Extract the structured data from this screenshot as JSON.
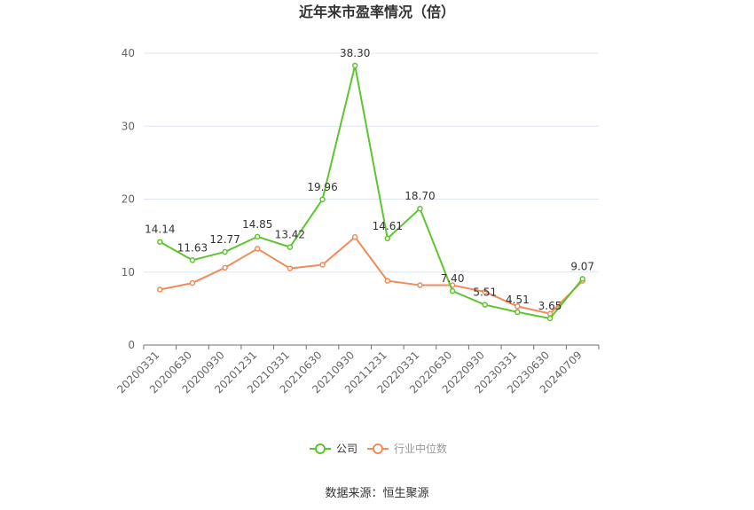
{
  "chart_data": {
    "type": "line",
    "title": "近年来市盈率情况（倍）",
    "categories": [
      "20200331",
      "20200630",
      "20200930",
      "20201231",
      "20210331",
      "20210630",
      "20210930",
      "20211231",
      "20220331",
      "20220630",
      "20220930",
      "20230331",
      "20230630",
      "20240709"
    ],
    "series": [
      {
        "name": "公司",
        "color": "#5ec52e",
        "values": [
          14.14,
          11.63,
          12.77,
          14.85,
          13.42,
          19.96,
          38.3,
          14.61,
          18.7,
          7.4,
          5.51,
          4.51,
          3.65,
          9.07
        ],
        "labels": [
          "14.14",
          "11.63",
          "12.77",
          "14.85",
          "13.42",
          "19.96",
          "38.30",
          "14.61",
          "18.70",
          "7.40",
          "5.51",
          "4.51",
          "3.65",
          "9.07"
        ]
      },
      {
        "name": "行业中位数",
        "color": "#f08c5a",
        "values": [
          7.6,
          8.5,
          10.6,
          13.2,
          10.5,
          11.0,
          14.8,
          8.8,
          8.2,
          8.2,
          7.3,
          5.3,
          4.3,
          8.8
        ]
      }
    ],
    "ylim": [
      0,
      40
    ],
    "yticks": [
      0,
      10,
      20,
      30,
      40
    ],
    "grid": true,
    "legend_position": "bottom-center"
  },
  "source_text": "数据来源：恒生聚源"
}
